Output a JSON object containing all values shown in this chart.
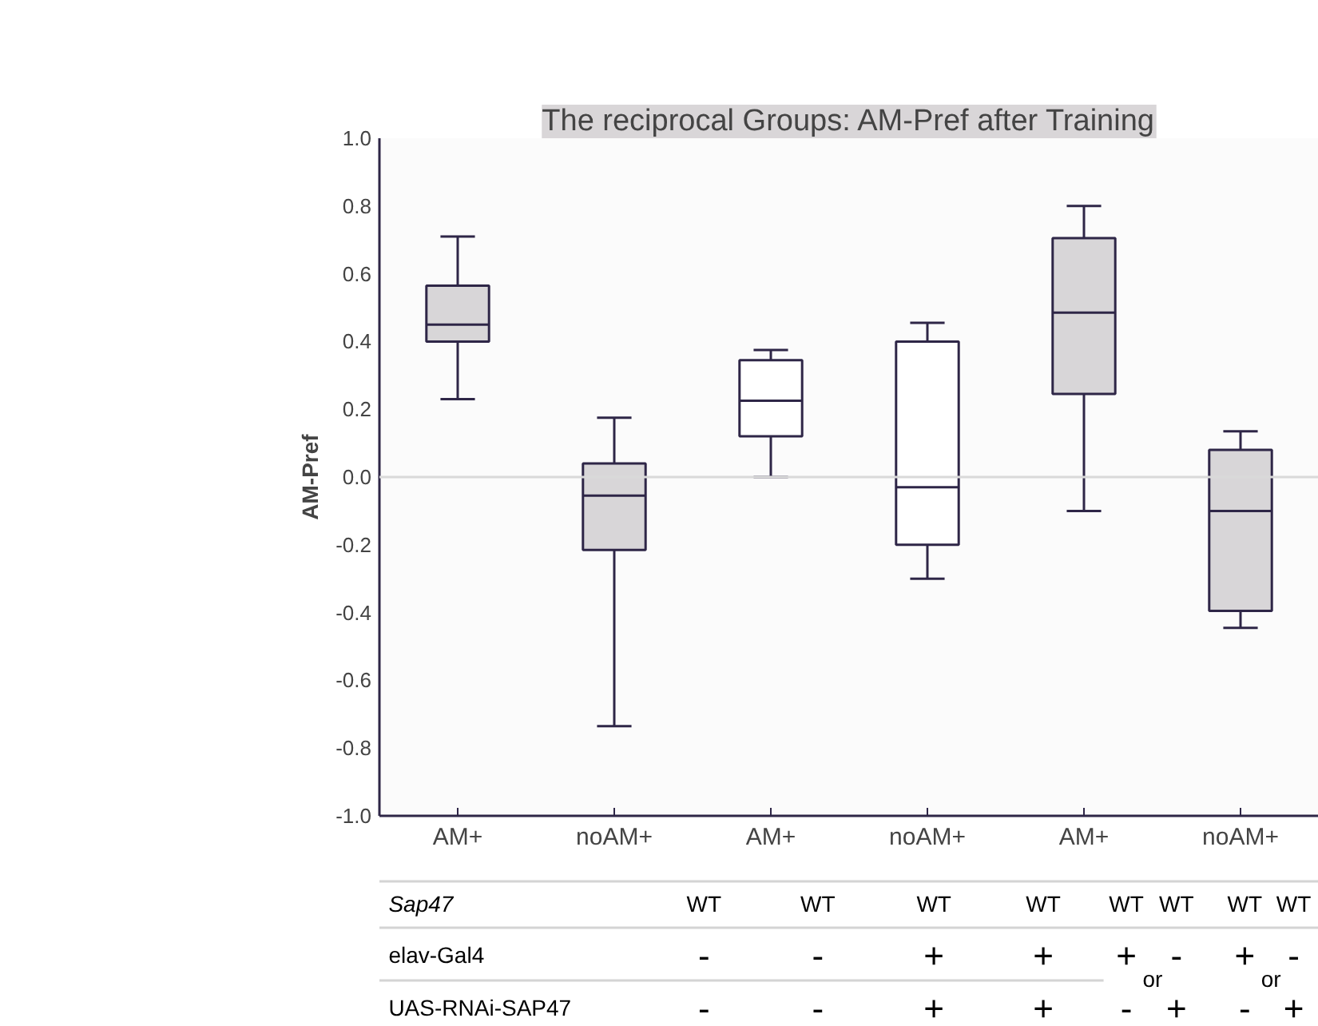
{
  "chart_data": {
    "type": "box",
    "title": "The reciprocal Groups: AM-Pref after Training",
    "ylabel": "AM-Pref",
    "categories": [
      "AM+",
      "noAM+",
      "AM+",
      "noAM+",
      "AM+",
      "noAM+"
    ],
    "colors": [
      "#d8d6d8",
      "#d8d6d8",
      "#ffffff",
      "#ffffff",
      "#d8d6d8",
      "#d8d6d8"
    ],
    "boxes": [
      {
        "low": 0.23,
        "q1": 0.4,
        "median": 0.45,
        "q3": 0.565,
        "high": 0.71
      },
      {
        "low": -0.735,
        "q1": -0.215,
        "median": -0.055,
        "q3": 0.04,
        "high": 0.175
      },
      {
        "low": 0.0,
        "q1": 0.12,
        "median": 0.225,
        "q3": 0.345,
        "high": 0.375
      },
      {
        "low": -0.3,
        "q1": -0.2,
        "median": -0.03,
        "q3": 0.4,
        "high": 0.455
      },
      {
        "low": -0.1,
        "q1": 0.245,
        "median": 0.485,
        "q3": 0.705,
        "high": 0.8
      },
      {
        "low": -0.445,
        "q1": -0.395,
        "median": -0.1,
        "q3": 0.08,
        "high": 0.135
      }
    ],
    "ylim": [
      -1.0,
      1.0
    ],
    "yticks": [
      {
        "value": -1.0,
        "label": "-1.0"
      },
      -0.8,
      -0.6,
      -0.4,
      -0.2,
      {
        "value": 0.0,
        "label": "0.0"
      },
      0.2,
      0.4,
      0.6,
      0.8,
      {
        "value": 1.0,
        "label": "1.0"
      }
    ],
    "ref_lines": [
      {
        "axis": "y",
        "value": 0.0,
        "label": null,
        "color": "#d9d9d9"
      }
    ],
    "grid": false,
    "annotations": [
      "Sap47",
      "WT",
      "WT",
      "WT",
      "WT",
      "WT",
      "WT",
      "WT",
      "WT",
      "elav-Gal4",
      "-",
      "-",
      "+",
      "+",
      "+",
      "-",
      "+",
      "-",
      "UAS-RNAi-SAP47",
      "-",
      "-",
      "+",
      "+",
      "-",
      "+",
      "-",
      "+",
      "or",
      "or"
    ]
  }
}
